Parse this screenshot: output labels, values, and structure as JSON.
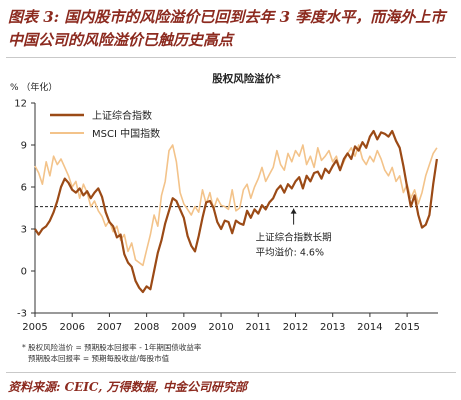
{
  "figure": {
    "title": "图表 3: 国内股市的风险溢价已回到去年 3 季度水平，而海外上市中国公司的风险溢价已触历史高点",
    "notes": [
      "* 股权风险溢价 = 预期股本回报率 - 1年期国债收益率",
      "预期股本回报率 = 预期每股收益/每股市值"
    ],
    "source": "资料来源: CEIC, 万得数据, 中金公司研究部"
  },
  "chart_data": {
    "type": "line",
    "title": "股权风险溢价*",
    "ylabel": "%  （年化）",
    "xlabel": "",
    "xlim": [
      2005.0,
      2015.83
    ],
    "ylim": [
      -3,
      12
    ],
    "yticks": [
      -3,
      0,
      3,
      6,
      9,
      12
    ],
    "xticks": [
      "2005",
      "2006",
      "2007",
      "2008",
      "2009",
      "2010",
      "2011",
      "2012",
      "2013",
      "2014",
      "2015"
    ],
    "grid": false,
    "legend_position": "top-left",
    "series": [
      {
        "name": "上证综合指数",
        "color": "#9b4a16",
        "width": 2.2,
        "x": [
          2005.0,
          2005.1,
          2005.2,
          2005.3,
          2005.4,
          2005.5,
          2005.6,
          2005.7,
          2005.8,
          2005.9,
          2006.0,
          2006.1,
          2006.2,
          2006.3,
          2006.4,
          2006.5,
          2006.6,
          2006.7,
          2006.8,
          2006.9,
          2007.0,
          2007.1,
          2007.2,
          2007.3,
          2007.4,
          2007.5,
          2007.6,
          2007.7,
          2007.8,
          2007.9,
          2008.0,
          2008.1,
          2008.2,
          2008.3,
          2008.4,
          2008.5,
          2008.6,
          2008.7,
          2008.8,
          2008.9,
          2009.0,
          2009.1,
          2009.2,
          2009.3,
          2009.4,
          2009.5,
          2009.6,
          2009.7,
          2009.8,
          2009.9,
          2010.0,
          2010.1,
          2010.2,
          2010.3,
          2010.4,
          2010.5,
          2010.6,
          2010.7,
          2010.8,
          2010.9,
          2011.0,
          2011.1,
          2011.2,
          2011.3,
          2011.4,
          2011.5,
          2011.6,
          2011.7,
          2011.8,
          2011.9,
          2012.0,
          2012.1,
          2012.2,
          2012.3,
          2012.4,
          2012.5,
          2012.6,
          2012.7,
          2012.8,
          2012.9,
          2013.0,
          2013.1,
          2013.2,
          2013.3,
          2013.4,
          2013.5,
          2013.6,
          2013.7,
          2013.8,
          2013.9,
          2014.0,
          2014.1,
          2014.2,
          2014.3,
          2014.4,
          2014.5,
          2014.6,
          2014.7,
          2014.8,
          2014.9,
          2015.0,
          2015.1,
          2015.2,
          2015.3,
          2015.4,
          2015.5,
          2015.6,
          2015.7,
          2015.8
        ],
        "y": [
          3.0,
          2.6,
          3.0,
          3.2,
          3.6,
          4.2,
          5.0,
          6.0,
          6.6,
          6.3,
          5.8,
          5.6,
          5.9,
          5.4,
          5.7,
          5.2,
          5.6,
          5.9,
          5.3,
          4.2,
          3.5,
          3.2,
          2.4,
          2.6,
          1.2,
          0.6,
          0.3,
          -0.7,
          -1.2,
          -1.5,
          -1.1,
          -1.3,
          0.0,
          1.3,
          2.2,
          3.4,
          4.3,
          5.2,
          5.0,
          4.4,
          3.8,
          2.5,
          1.8,
          1.4,
          2.5,
          3.8,
          4.9,
          5.0,
          4.5,
          3.5,
          3.0,
          3.6,
          3.5,
          2.7,
          3.6,
          3.4,
          3.3,
          4.3,
          3.8,
          4.4,
          4.1,
          4.7,
          4.4,
          4.9,
          5.2,
          5.8,
          6.1,
          5.6,
          6.2,
          5.9,
          6.4,
          6.7,
          5.9,
          6.8,
          6.4,
          7.0,
          7.1,
          6.6,
          7.3,
          7.0,
          7.5,
          7.9,
          7.2,
          8.0,
          8.4,
          8.0,
          8.9,
          8.6,
          9.2,
          8.8,
          9.6,
          10.0,
          9.4,
          9.9,
          9.8,
          9.6,
          10.0,
          9.3,
          8.8,
          7.5,
          6.0,
          4.6,
          5.4,
          4.0,
          3.1,
          3.3,
          4.0,
          6.2,
          8.0
        ]
      },
      {
        "name": "MSCI 中国指数",
        "color": "#f3c38a",
        "width": 1.6,
        "x": [
          2005.0,
          2005.1,
          2005.2,
          2005.3,
          2005.4,
          2005.5,
          2005.6,
          2005.7,
          2005.8,
          2005.9,
          2006.0,
          2006.1,
          2006.2,
          2006.3,
          2006.4,
          2006.5,
          2006.6,
          2006.7,
          2006.8,
          2006.9,
          2007.0,
          2007.1,
          2007.2,
          2007.3,
          2007.4,
          2007.5,
          2007.6,
          2007.7,
          2007.8,
          2007.9,
          2008.0,
          2008.1,
          2008.2,
          2008.3,
          2008.4,
          2008.5,
          2008.6,
          2008.7,
          2008.8,
          2008.9,
          2009.0,
          2009.1,
          2009.2,
          2009.3,
          2009.4,
          2009.5,
          2009.6,
          2009.7,
          2009.8,
          2009.9,
          2010.0,
          2010.1,
          2010.2,
          2010.3,
          2010.4,
          2010.5,
          2010.6,
          2010.7,
          2010.8,
          2010.9,
          2011.0,
          2011.1,
          2011.2,
          2011.3,
          2011.4,
          2011.5,
          2011.6,
          2011.7,
          2011.8,
          2011.9,
          2012.0,
          2012.1,
          2012.2,
          2012.3,
          2012.4,
          2012.5,
          2012.6,
          2012.7,
          2012.8,
          2012.9,
          2013.0,
          2013.1,
          2013.2,
          2013.3,
          2013.4,
          2013.5,
          2013.6,
          2013.7,
          2013.8,
          2013.9,
          2014.0,
          2014.1,
          2014.2,
          2014.3,
          2014.4,
          2014.5,
          2014.6,
          2014.7,
          2014.8,
          2014.9,
          2015.0,
          2015.1,
          2015.2,
          2015.3,
          2015.4,
          2015.5,
          2015.6,
          2015.7,
          2015.8
        ],
        "y": [
          7.5,
          7.0,
          6.2,
          7.8,
          6.8,
          8.2,
          7.6,
          8.0,
          7.4,
          6.8,
          6.0,
          6.4,
          5.2,
          6.2,
          5.6,
          4.6,
          5.0,
          4.3,
          3.9,
          3.2,
          3.6,
          2.8,
          3.2,
          2.2,
          2.6,
          1.4,
          2.0,
          0.8,
          0.6,
          0.4,
          1.5,
          2.6,
          4.0,
          3.2,
          5.4,
          6.4,
          8.6,
          9.0,
          7.8,
          5.6,
          4.8,
          4.4,
          4.0,
          4.6,
          4.2,
          5.8,
          4.8,
          5.6,
          4.4,
          5.2,
          4.7,
          4.6,
          4.4,
          5.8,
          4.3,
          4.5,
          5.8,
          6.2,
          5.2,
          6.0,
          6.6,
          7.4,
          6.4,
          6.9,
          7.4,
          8.6,
          7.6,
          7.2,
          8.4,
          7.8,
          8.6,
          8.2,
          9.0,
          7.6,
          8.2,
          7.4,
          8.8,
          7.9,
          8.2,
          8.6,
          7.8,
          8.2,
          7.2,
          7.8,
          8.4,
          8.8,
          8.2,
          9.0,
          8.0,
          7.6,
          8.2,
          7.8,
          8.6,
          8.0,
          7.2,
          6.8,
          7.4,
          6.4,
          6.8,
          5.6,
          6.2,
          5.2,
          5.8,
          4.8,
          5.6,
          6.8,
          7.6,
          8.4,
          8.8
        ]
      }
    ],
    "reference_line": {
      "y": 4.6,
      "style": "dashed",
      "label_lines": [
        "上证综合指数长期",
        "平均溢价:  4.6%"
      ]
    }
  }
}
